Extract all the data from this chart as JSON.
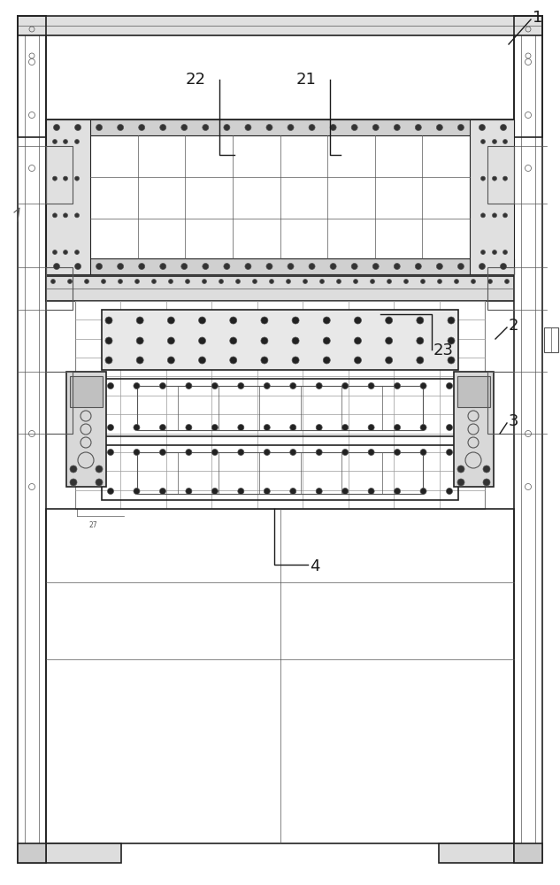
{
  "bg_color": "#ffffff",
  "lc": "#555555",
  "lcd": "#222222",
  "lcl": "#999999",
  "fig_width": 6.33,
  "fig_height": 10.0
}
